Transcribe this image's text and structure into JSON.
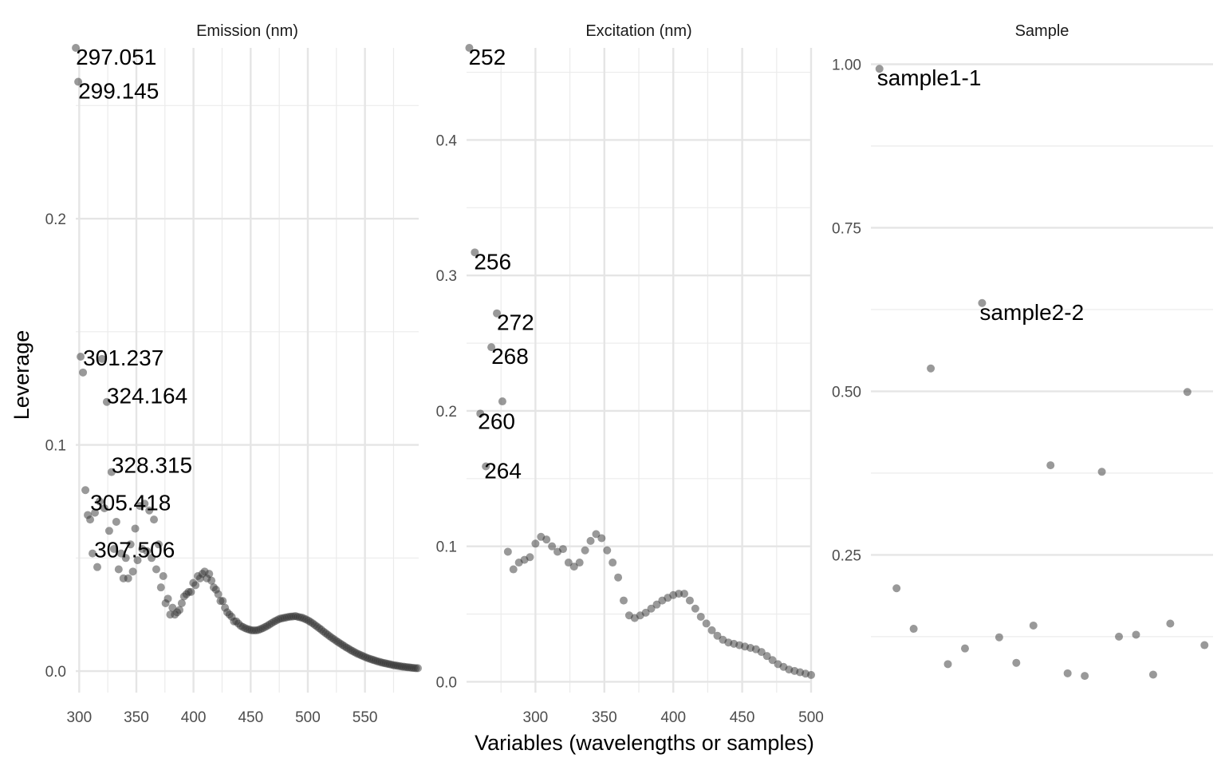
{
  "chart_data": {
    "type": "scatter",
    "ylabel": "Leverage",
    "xlabel": "Variables (wavelengths or samples)",
    "point_color": "#333333",
    "panels": [
      {
        "title": "Emission (nm)",
        "xlim": [
          297,
          597
        ],
        "ylim": [
          -0.0095,
          0.2755
        ],
        "x_ticks": [
          300,
          350,
          400,
          450,
          500,
          550
        ],
        "y_ticks": [
          0.0,
          0.1,
          0.2
        ],
        "y_tick_labels": [
          "0.0",
          "0.1",
          "0.2"
        ],
        "x": [
          297.05,
          299.15,
          301.24,
          303.33,
          305.42,
          307.51,
          309.59,
          311.67,
          313.75,
          315.83,
          317.91,
          319.98,
          322.05,
          324.16,
          326.24,
          328.32,
          330.4,
          332.48,
          334.55,
          336.62,
          338.69,
          340.76,
          342.83,
          344.89,
          346.95,
          349.01,
          351.07,
          353.12,
          355.17,
          357.22,
          359.27,
          361.32,
          363.36,
          365.4,
          367.44,
          369.48,
          371.51,
          373.54,
          375.57,
          377.6,
          379.63,
          381.65,
          383.67,
          385.69,
          387.71,
          389.72,
          391.73,
          393.74,
          395.75,
          397.76,
          399.76,
          401.76,
          403.76,
          405.75,
          407.75,
          409.74,
          411.73,
          413.71,
          415.7,
          417.68,
          419.66,
          421.63,
          423.61,
          425.58,
          427.55,
          429.52,
          431.48,
          433.44,
          435.4,
          437.36,
          439.32,
          441.27,
          443.22,
          445.17,
          447.11,
          449.06,
          451.0,
          452.94,
          454.87,
          456.81,
          458.74,
          460.66,
          462.59,
          464.51,
          466.43,
          468.35,
          470.27,
          472.18,
          474.09,
          476.0,
          477.91,
          479.81,
          481.71,
          483.61,
          485.5,
          487.4,
          489.29,
          491.18,
          493.06,
          494.94,
          496.82,
          498.7,
          500.58,
          502.45,
          504.32,
          506.19,
          508.05,
          509.92,
          511.78,
          513.63,
          515.49,
          517.34,
          519.19,
          521.04,
          522.88,
          524.72,
          526.56,
          528.4,
          530.23,
          532.06,
          533.89,
          535.72,
          537.54,
          539.36,
          541.18,
          543.0,
          544.81,
          546.62,
          548.43,
          550.24,
          552.04,
          553.84,
          555.64,
          557.43,
          559.23,
          561.02,
          562.8,
          564.59,
          566.37,
          568.15,
          569.93,
          571.7,
          573.47,
          575.24,
          577.01,
          578.77,
          580.53,
          582.29,
          584.05,
          585.8,
          587.55,
          589.3,
          591.04,
          592.79,
          594.53,
          596.26
        ],
        "y": [
          0.2755,
          0.2605,
          0.139,
          0.132,
          0.08,
          0.069,
          0.067,
          0.052,
          0.07,
          0.046,
          0.075,
          0.138,
          0.072,
          0.119,
          0.062,
          0.088,
          0.054,
          0.066,
          0.045,
          0.052,
          0.041,
          0.05,
          0.041,
          0.056,
          0.044,
          0.063,
          0.049,
          0.073,
          0.054,
          0.074,
          0.053,
          0.071,
          0.05,
          0.067,
          0.045,
          0.056,
          0.037,
          0.042,
          0.03,
          0.032,
          0.025,
          0.028,
          0.025,
          0.026,
          0.027,
          0.03,
          0.033,
          0.034,
          0.035,
          0.035,
          0.039,
          0.038,
          0.042,
          0.041,
          0.043,
          0.044,
          0.041,
          0.043,
          0.04,
          0.037,
          0.036,
          0.034,
          0.031,
          0.031,
          0.028,
          0.026,
          0.025,
          0.024,
          0.022,
          0.022,
          0.021,
          0.02,
          0.0195,
          0.019,
          0.0186,
          0.0183,
          0.018,
          0.018,
          0.018,
          0.0182,
          0.0186,
          0.019,
          0.0195,
          0.02,
          0.0206,
          0.0212,
          0.0218,
          0.0223,
          0.0228,
          0.0232,
          0.0234,
          0.0236,
          0.0238,
          0.024,
          0.0241,
          0.0242,
          0.0243,
          0.024,
          0.0238,
          0.0236,
          0.0232,
          0.0228,
          0.0223,
          0.0217,
          0.0211,
          0.0204,
          0.0197,
          0.019,
          0.0183,
          0.0175,
          0.0168,
          0.0161,
          0.0154,
          0.0147,
          0.0141,
          0.0134,
          0.0128,
          0.0122,
          0.0116,
          0.011,
          0.0104,
          0.0099,
          0.0093,
          0.0088,
          0.0083,
          0.0078,
          0.0074,
          0.007,
          0.0066,
          0.0062,
          0.0058,
          0.0055,
          0.0052,
          0.0049,
          0.0046,
          0.0043,
          0.0041,
          0.0038,
          0.0036,
          0.0034,
          0.0032,
          0.003,
          0.0028,
          0.0026,
          0.0025,
          0.0023,
          0.0022,
          0.002,
          0.0019,
          0.0018,
          0.0017,
          0.0016,
          0.0015,
          0.0014,
          0.0013,
          0.0013
        ],
        "labels": [
          {
            "text": "297.051",
            "x": 297.05,
            "y": 0.2755
          },
          {
            "text": "299.145",
            "x": 299.15,
            "y": 0.2605
          },
          {
            "text": "301.237",
            "x": 301.24,
            "y": 0.139
          },
          {
            "text": "324.164",
            "x": 324.16,
            "y": 0.119
          },
          {
            "text": "328.315",
            "x": 328.32,
            "y": 0.088
          },
          {
            "text": "305.418",
            "x": 305.42,
            "y": 0.08
          },
          {
            "text": "307.506",
            "x": 307.51,
            "y": 0.069
          }
        ]
      },
      {
        "title": "Excitation (nm)",
        "xlim": [
          250,
          500
        ],
        "ylim": [
          -0.008,
          0.468
        ],
        "x_ticks": [
          300,
          350,
          400,
          450,
          500
        ],
        "y_ticks": [
          0.0,
          0.1,
          0.2,
          0.3,
          0.4
        ],
        "y_tick_labels": [
          "0.0",
          "0.1",
          "0.2",
          "0.3",
          "0.4"
        ],
        "x": [
          252,
          256,
          260,
          264,
          268,
          272,
          276,
          280,
          284,
          288,
          292,
          296,
          300,
          304,
          308,
          312,
          316,
          320,
          324,
          328,
          332,
          336,
          340,
          344,
          348,
          352,
          356,
          360,
          364,
          368,
          372,
          376,
          380,
          384,
          388,
          392,
          396,
          400,
          404,
          408,
          412,
          416,
          420,
          424,
          428,
          432,
          436,
          440,
          444,
          448,
          452,
          456,
          460,
          464,
          468,
          472,
          476,
          480,
          484,
          488,
          492,
          496,
          500
        ],
        "y": [
          0.468,
          0.317,
          0.198,
          0.159,
          0.247,
          0.272,
          0.207,
          0.096,
          0.083,
          0.088,
          0.09,
          0.092,
          0.102,
          0.107,
          0.105,
          0.1,
          0.096,
          0.098,
          0.088,
          0.085,
          0.088,
          0.097,
          0.104,
          0.109,
          0.106,
          0.097,
          0.088,
          0.077,
          0.06,
          0.049,
          0.047,
          0.049,
          0.051,
          0.054,
          0.057,
          0.06,
          0.062,
          0.064,
          0.065,
          0.065,
          0.06,
          0.054,
          0.048,
          0.043,
          0.038,
          0.034,
          0.031,
          0.029,
          0.028,
          0.027,
          0.026,
          0.025,
          0.024,
          0.022,
          0.019,
          0.016,
          0.013,
          0.011,
          0.009,
          0.008,
          0.007,
          0.006,
          0.005
        ],
        "labels": [
          {
            "text": "252",
            "x": 252,
            "y": 0.468
          },
          {
            "text": "256",
            "x": 256,
            "y": 0.317
          },
          {
            "text": "272",
            "x": 272,
            "y": 0.272
          },
          {
            "text": "268",
            "x": 268,
            "y": 0.247
          },
          {
            "text": "260",
            "x": 260,
            "y": 0.198
          },
          {
            "text": "264",
            "x": 264,
            "y": 0.159
          }
        ]
      },
      {
        "title": "Sample",
        "xlim": [
          0.5,
          20.5
        ],
        "ylim": [
          0.0395,
          1.025
        ],
        "x_ticks": [],
        "y_ticks": [
          0.25,
          0.5,
          0.75,
          1.0
        ],
        "y_tick_labels": [
          "0.25",
          "0.50",
          "0.75",
          "1.00"
        ],
        "x": [
          1,
          2,
          3,
          4,
          5,
          6,
          7,
          8,
          9,
          10,
          11,
          12,
          13,
          14,
          15,
          16,
          17,
          18,
          19,
          20
        ],
        "y": [
          0.993,
          0.199,
          0.137,
          0.535,
          0.083,
          0.107,
          0.635,
          0.124,
          0.085,
          0.142,
          0.387,
          0.069,
          0.065,
          0.377,
          0.125,
          0.128,
          0.067,
          0.145,
          0.499,
          0.112
        ],
        "labels": [
          {
            "text": "sample1-1",
            "x": 1,
            "y": 0.993
          },
          {
            "text": "sample2-2",
            "x": 7,
            "y": 0.635
          }
        ]
      }
    ]
  }
}
